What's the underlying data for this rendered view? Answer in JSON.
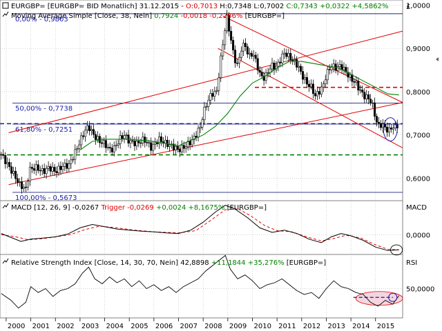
{
  "header": {
    "symbol": "EURGBP= [EURGBP= BID Monatlich] 31.12.2015 -",
    "ohlc_open": "O:0,7013",
    "ohlc_high": "H:0,7348",
    "ohlc_low": "L:0,7002",
    "ohlc_close": "C:0,7343",
    "change_abs": "+0,0322",
    "change_pct": "+4,5862%",
    "ma_name": "Moving Average Simple [Close, 38, Nein]",
    "ma_value": "0,7924",
    "ma_change_abs": "-0,0018",
    "ma_change_pct": "-0,2286%",
    "ma_symbol": "[EURGBP=]"
  },
  "currency_label": "£",
  "colors": {
    "grid": "#b4b4b4",
    "candles": "#000000",
    "ma": "#008000",
    "channel": "#e00000",
    "fib": "#1a237e",
    "fib_label": "#1a1ab0",
    "level_red": "#e00000",
    "level_blue": "#1a1a9a",
    "level_green": "#008000",
    "macd": "#000000",
    "trigger": "#e00000",
    "rsi": "#000000",
    "highlight_fill": "#f5d5e0",
    "highlight_stroke": "#1a1a9a",
    "up": "#008000",
    "down": "#e00000"
  },
  "chart_data": [
    {
      "type": "candlestick",
      "name": "price",
      "x_range": [
        1999.75,
        2016.1
      ],
      "ylim": [
        0.548,
        1.012
      ],
      "y_ticks": [
        0.6,
        0.7,
        0.8,
        0.9,
        1.0
      ],
      "y_tick_labels": [
        "0,6000",
        "0,7000",
        "0,8000",
        "0,9000",
        "1,0000"
      ],
      "x_ticks": [
        2000,
        2001,
        2002,
        2003,
        2004,
        2005,
        2006,
        2007,
        2008,
        2009,
        2010,
        2011,
        2012,
        2013,
        2014,
        2015
      ],
      "x_tick_labels": [
        "2000",
        "2001",
        "2002",
        "2003",
        "2004",
        "2005",
        "2006",
        "2007",
        "2008",
        "2009",
        "2010",
        "2011",
        "2012",
        "2013",
        "2014",
        "2015"
      ],
      "close_path": [
        [
          1999.8,
          0.655
        ],
        [
          2000.1,
          0.628
        ],
        [
          2000.35,
          0.605
        ],
        [
          2000.55,
          0.585
        ],
        [
          2000.8,
          0.575
        ],
        [
          2000.95,
          0.62
        ],
        [
          2001.2,
          0.625
        ],
        [
          2001.5,
          0.615
        ],
        [
          2001.75,
          0.625
        ],
        [
          2002.0,
          0.615
        ],
        [
          2002.3,
          0.628
        ],
        [
          2002.55,
          0.63
        ],
        [
          2002.8,
          0.66
        ],
        [
          2003.0,
          0.685
        ],
        [
          2003.2,
          0.71
        ],
        [
          2003.35,
          0.72
        ],
        [
          2003.55,
          0.7
        ],
        [
          2003.8,
          0.685
        ],
        [
          2004.0,
          0.68
        ],
        [
          2004.2,
          0.665
        ],
        [
          2004.4,
          0.67
        ],
        [
          2004.6,
          0.69
        ],
        [
          2004.8,
          0.7
        ],
        [
          2005.0,
          0.685
        ],
        [
          2005.3,
          0.68
        ],
        [
          2005.6,
          0.69
        ],
        [
          2005.9,
          0.67
        ],
        [
          2006.2,
          0.69
        ],
        [
          2006.5,
          0.68
        ],
        [
          2006.8,
          0.672
        ],
        [
          2007.0,
          0.665
        ],
        [
          2007.3,
          0.675
        ],
        [
          2007.6,
          0.69
        ],
        [
          2007.9,
          0.72
        ],
        [
          2008.0,
          0.75
        ],
        [
          2008.2,
          0.78
        ],
        [
          2008.35,
          0.795
        ],
        [
          2008.55,
          0.8
        ],
        [
          2008.7,
          0.87
        ],
        [
          2008.85,
          0.93
        ],
        [
          2008.95,
          0.975
        ],
        [
          2009.1,
          0.93
        ],
        [
          2009.25,
          0.88
        ],
        [
          2009.4,
          0.86
        ],
        [
          2009.55,
          0.9
        ],
        [
          2009.7,
          0.91
        ],
        [
          2009.85,
          0.88
        ],
        [
          2010.0,
          0.89
        ],
        [
          2010.15,
          0.87
        ],
        [
          2010.3,
          0.84
        ],
        [
          2010.5,
          0.83
        ],
        [
          2010.65,
          0.85
        ],
        [
          2010.8,
          0.86
        ],
        [
          2010.95,
          0.855
        ],
        [
          2011.1,
          0.87
        ],
        [
          2011.3,
          0.89
        ],
        [
          2011.5,
          0.88
        ],
        [
          2011.7,
          0.87
        ],
        [
          2011.85,
          0.86
        ],
        [
          2012.0,
          0.84
        ],
        [
          2012.2,
          0.82
        ],
        [
          2012.4,
          0.81
        ],
        [
          2012.55,
          0.79
        ],
        [
          2012.7,
          0.8
        ],
        [
          2012.85,
          0.81
        ],
        [
          2013.0,
          0.84
        ],
        [
          2013.2,
          0.86
        ],
        [
          2013.4,
          0.855
        ],
        [
          2013.6,
          0.86
        ],
        [
          2013.8,
          0.845
        ],
        [
          2014.0,
          0.83
        ],
        [
          2014.2,
          0.82
        ],
        [
          2014.4,
          0.8
        ],
        [
          2014.55,
          0.79
        ],
        [
          2014.7,
          0.785
        ],
        [
          2014.85,
          0.775
        ],
        [
          2015.0,
          0.74
        ],
        [
          2015.1,
          0.72
        ],
        [
          2015.25,
          0.725
        ],
        [
          2015.4,
          0.715
        ],
        [
          2015.55,
          0.71
        ],
        [
          2015.7,
          0.72
        ],
        [
          2015.85,
          0.715
        ],
        [
          2015.95,
          0.7343
        ]
      ],
      "moving_average": {
        "label": "Moving Average Simple [Close, 38, Nein]",
        "points": [
          [
            2003.0,
            0.665
          ],
          [
            2003.5,
            0.685
          ],
          [
            2004.0,
            0.69
          ],
          [
            2005.0,
            0.69
          ],
          [
            2006.0,
            0.685
          ],
          [
            2007.0,
            0.675
          ],
          [
            2008.0,
            0.7
          ],
          [
            2008.5,
            0.72
          ],
          [
            2009.0,
            0.75
          ],
          [
            2009.5,
            0.79
          ],
          [
            2010.0,
            0.82
          ],
          [
            2010.5,
            0.835
          ],
          [
            2011.0,
            0.855
          ],
          [
            2011.5,
            0.87
          ],
          [
            2012.0,
            0.87
          ],
          [
            2012.5,
            0.865
          ],
          [
            2013.0,
            0.86
          ],
          [
            2013.5,
            0.855
          ],
          [
            2014.0,
            0.84
          ],
          [
            2014.5,
            0.825
          ],
          [
            2015.0,
            0.81
          ],
          [
            2015.5,
            0.795
          ],
          [
            2015.95,
            0.7924
          ]
        ]
      },
      "channel_lines": [
        [
          [
            2000.1,
            0.585
          ],
          [
            2016.1,
            0.775
          ]
        ],
        [
          [
            2000.1,
            0.705
          ],
          [
            2016.1,
            0.94
          ]
        ],
        [
          [
            2008.8,
            0.975
          ],
          [
            2016.1,
            0.775
          ]
        ],
        [
          [
            2008.6,
            0.9
          ],
          [
            2016.1,
            0.67
          ]
        ]
      ],
      "fibonacci": [
        {
          "level": 0.9803,
          "label": "0,00% - 0,9803"
        },
        {
          "level": 0.7738,
          "label": "50,00% - 0,7738"
        },
        {
          "level": 0.7251,
          "label": "61,80% - 0,7251"
        },
        {
          "level": 0.5673,
          "label": "100,00% - 0,5673"
        }
      ],
      "horizontal_levels": [
        {
          "level": 0.81,
          "from": 2010.1,
          "style": "dashed",
          "color": "red"
        },
        {
          "level": 0.726,
          "from": 1999.75,
          "style": "dashed",
          "color": "blue"
        },
        {
          "level": 0.654,
          "from": 1999.75,
          "style": "dashed",
          "color": "green"
        }
      ],
      "highlight": {
        "type": "ellipse",
        "cx": 2015.6,
        "cy": 0.713,
        "rx_years": 0.28,
        "ry_value": 0.027
      }
    },
    {
      "type": "line",
      "name": "macd",
      "label": "MACD [12, 26, 9]",
      "value": "-0,0267",
      "trigger_label": "Trigger",
      "trigger_value": "-0,0269",
      "trigger_change_abs": "+0,0024",
      "trigger_change_pct": "+8,1675%",
      "symbol": "[EURGBP=]",
      "panel_title": "MACD",
      "ylim": [
        -0.035,
        0.06
      ],
      "y_ticks": [
        0.0
      ],
      "y_tick_labels": [
        "0,0000"
      ],
      "macd_points": [
        [
          1999.8,
          0.002
        ],
        [
          2000.2,
          -0.005
        ],
        [
          2000.6,
          -0.012
        ],
        [
          2001.0,
          -0.008
        ],
        [
          2001.5,
          -0.006
        ],
        [
          2002.0,
          -0.004
        ],
        [
          2002.5,
          0.001
        ],
        [
          2003.0,
          0.012
        ],
        [
          2003.5,
          0.018
        ],
        [
          2004.0,
          0.014
        ],
        [
          2004.5,
          0.01
        ],
        [
          2005.0,
          0.008
        ],
        [
          2005.5,
          0.006
        ],
        [
          2006.0,
          0.005
        ],
        [
          2006.5,
          0.003
        ],
        [
          2007.0,
          0.002
        ],
        [
          2007.5,
          0.008
        ],
        [
          2008.0,
          0.022
        ],
        [
          2008.5,
          0.04
        ],
        [
          2008.9,
          0.052
        ],
        [
          2009.3,
          0.045
        ],
        [
          2009.8,
          0.03
        ],
        [
          2010.3,
          0.012
        ],
        [
          2010.8,
          0.004
        ],
        [
          2011.3,
          0.008
        ],
        [
          2011.8,
          0.002
        ],
        [
          2012.3,
          -0.008
        ],
        [
          2012.8,
          -0.014
        ],
        [
          2013.2,
          -0.004
        ],
        [
          2013.6,
          0.002
        ],
        [
          2014.0,
          -0.002
        ],
        [
          2014.5,
          -0.01
        ],
        [
          2015.0,
          -0.022
        ],
        [
          2015.5,
          -0.028
        ],
        [
          2015.95,
          -0.0267
        ]
      ],
      "trigger_points": [
        [
          1999.8,
          0.0
        ],
        [
          2000.4,
          -0.004
        ],
        [
          2000.9,
          -0.009
        ],
        [
          2001.5,
          -0.007
        ],
        [
          2002.0,
          -0.004
        ],
        [
          2002.6,
          0.0
        ],
        [
          2003.2,
          0.009
        ],
        [
          2003.8,
          0.015
        ],
        [
          2004.5,
          0.012
        ],
        [
          2005.2,
          0.008
        ],
        [
          2006.0,
          0.005
        ],
        [
          2007.0,
          0.003
        ],
        [
          2007.7,
          0.007
        ],
        [
          2008.3,
          0.025
        ],
        [
          2008.9,
          0.044
        ],
        [
          2009.4,
          0.046
        ],
        [
          2009.9,
          0.034
        ],
        [
          2010.5,
          0.016
        ],
        [
          2011.0,
          0.007
        ],
        [
          2011.6,
          0.005
        ],
        [
          2012.2,
          -0.004
        ],
        [
          2012.8,
          -0.011
        ],
        [
          2013.3,
          -0.007
        ],
        [
          2013.8,
          -0.001
        ],
        [
          2014.4,
          -0.006
        ],
        [
          2015.0,
          -0.018
        ],
        [
          2015.5,
          -0.026
        ],
        [
          2015.95,
          -0.0269
        ]
      ],
      "highlight": {
        "type": "ellipse",
        "cx": 2015.85,
        "cy": -0.027,
        "rx_years": 0.24,
        "ry_value": 0.009
      }
    },
    {
      "type": "line",
      "name": "rsi",
      "label": "Relative Strength Index [Close, 14, 30, 70, Nein]",
      "value": "42,8898",
      "change_abs": "+11,1844",
      "change_pct": "+35,276%",
      "symbol": "[EURGBP=]",
      "panel_title": "RSI",
      "ylim": [
        20,
        85
      ],
      "y_ticks": [
        50
      ],
      "y_tick_labels": [
        "50,0000"
      ],
      "points": [
        [
          1999.8,
          45
        ],
        [
          2000.2,
          38
        ],
        [
          2000.5,
          30
        ],
        [
          2000.8,
          36
        ],
        [
          2001.0,
          52
        ],
        [
          2001.3,
          46
        ],
        [
          2001.6,
          50
        ],
        [
          2001.9,
          42
        ],
        [
          2002.2,
          48
        ],
        [
          2002.5,
          50
        ],
        [
          2002.8,
          55
        ],
        [
          2003.1,
          66
        ],
        [
          2003.35,
          72
        ],
        [
          2003.6,
          60
        ],
        [
          2003.9,
          55
        ],
        [
          2004.2,
          62
        ],
        [
          2004.5,
          56
        ],
        [
          2004.8,
          60
        ],
        [
          2005.1,
          52
        ],
        [
          2005.4,
          58
        ],
        [
          2005.7,
          50
        ],
        [
          2006.0,
          54
        ],
        [
          2006.3,
          48
        ],
        [
          2006.6,
          52
        ],
        [
          2006.9,
          46
        ],
        [
          2007.2,
          52
        ],
        [
          2007.5,
          56
        ],
        [
          2007.8,
          60
        ],
        [
          2008.1,
          68
        ],
        [
          2008.4,
          74
        ],
        [
          2008.7,
          80
        ],
        [
          2008.9,
          84
        ],
        [
          2009.1,
          70
        ],
        [
          2009.4,
          60
        ],
        [
          2009.7,
          64
        ],
        [
          2010.0,
          58
        ],
        [
          2010.3,
          50
        ],
        [
          2010.6,
          54
        ],
        [
          2010.9,
          56
        ],
        [
          2011.2,
          60
        ],
        [
          2011.5,
          54
        ],
        [
          2011.8,
          48
        ],
        [
          2012.1,
          44
        ],
        [
          2012.4,
          46
        ],
        [
          2012.7,
          40
        ],
        [
          2013.0,
          50
        ],
        [
          2013.3,
          58
        ],
        [
          2013.6,
          52
        ],
        [
          2013.9,
          50
        ],
        [
          2014.2,
          46
        ],
        [
          2014.5,
          44
        ],
        [
          2014.8,
          36
        ],
        [
          2015.1,
          32
        ],
        [
          2015.4,
          38
        ],
        [
          2015.7,
          34
        ],
        [
          2015.95,
          42.8898
        ]
      ],
      "dashed_level": {
        "value": 41,
        "from": 2014.1
      },
      "highlight": {
        "type": "ellipse",
        "cx": 2015.15,
        "cy": 40,
        "rx_years": 0.95,
        "ry_value": 7
      }
    }
  ]
}
